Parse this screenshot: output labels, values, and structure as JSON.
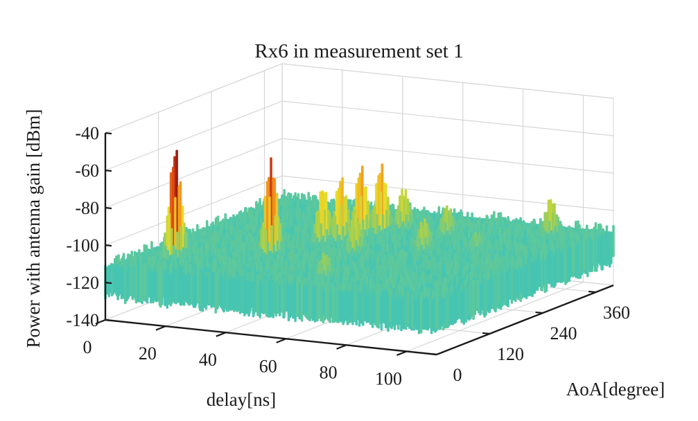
{
  "chart_data": {
    "type": "surface3d",
    "title": "Rx6 in measurement set 1",
    "xlabel": "delay[ns]",
    "ylabel": "AoA[degree]",
    "zlabel": "Power with antenna gain [dBm]",
    "xlim": [
      0,
      110
    ],
    "ylim": [
      0,
      400
    ],
    "zlim": [
      -140,
      -40
    ],
    "xticks": [
      "0",
      "20",
      "40",
      "60",
      "80",
      "100"
    ],
    "xtick_values": [
      0,
      20,
      40,
      60,
      80,
      100
    ],
    "yticks": [
      "0",
      "120",
      "240",
      "360"
    ],
    "ytick_values": [
      0,
      120,
      240,
      360
    ],
    "zticks": [
      "-40",
      "-60",
      "-80",
      "-100",
      "-120",
      "-140"
    ],
    "ztick_values": [
      -40,
      -60,
      -80,
      -100,
      -120,
      -140
    ],
    "noise_floor_dbm": -112,
    "colormap": [
      "#3a56c8",
      "#2f8fd8",
      "#1fc0d6",
      "#60c89a",
      "#a8cf4c",
      "#e8dc2a",
      "#f4a21e",
      "#e04a16",
      "#8c1010"
    ],
    "grid": true,
    "peaks": [
      {
        "delay_ns": 10,
        "aoa_deg": 90,
        "power_dbm": -54
      },
      {
        "delay_ns": 33,
        "aoa_deg": 150,
        "power_dbm": -62
      },
      {
        "delay_ns": 40,
        "aoa_deg": 220,
        "power_dbm": -82
      },
      {
        "delay_ns": 43,
        "aoa_deg": 240,
        "power_dbm": -78
      },
      {
        "delay_ns": 46,
        "aoa_deg": 265,
        "power_dbm": -74
      },
      {
        "delay_ns": 49,
        "aoa_deg": 290,
        "power_dbm": -75
      },
      {
        "delay_ns": 52,
        "aoa_deg": 320,
        "power_dbm": -90
      },
      {
        "delay_ns": 64,
        "aoa_deg": 60,
        "power_dbm": -99
      },
      {
        "delay_ns": 55,
        "aoa_deg": 190,
        "power_dbm": -92
      },
      {
        "delay_ns": 78,
        "aoa_deg": 130,
        "power_dbm": -108
      },
      {
        "delay_ns": 72,
        "aoa_deg": 230,
        "power_dbm": -95
      },
      {
        "delay_ns": 68,
        "aoa_deg": 310,
        "power_dbm": -96
      },
      {
        "delay_ns": 85,
        "aoa_deg": 260,
        "power_dbm": -103
      },
      {
        "delay_ns": 95,
        "aoa_deg": 360,
        "power_dbm": -92
      }
    ]
  }
}
